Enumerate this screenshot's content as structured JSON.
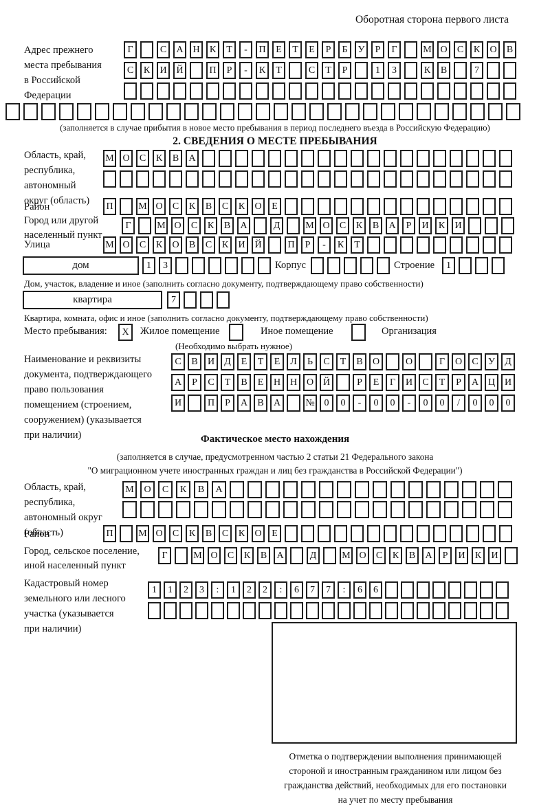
{
  "header": {
    "note": "Оборотная сторона первого листа"
  },
  "prev_address": {
    "label": "Адрес прежнего\nместа пребывания\nв Российской\nФедерации",
    "rows": [
      {
        "t": "Г САНКТ-ПЕТЕРБУРГ МОСКОВ",
        "n": 24
      },
      {
        "t": "СКИЙ ПР-КТ СТР 13 КВ 7",
        "n": 24
      },
      {
        "t": "",
        "n": 24
      },
      {
        "t": "",
        "n": 29
      }
    ],
    "note": "(заполняется в случае прибытия в новое место пребывания в период последнего въезда в Российскую Федерацию)"
  },
  "section2": {
    "title": "2. СВЕДЕНИЯ О МЕСТЕ ПРЕБЫВАНИЯ",
    "region": {
      "label": "Область, край,\nреспублика,\nавтономный\nокруг (область)",
      "rows": [
        {
          "t": "МОСКВА",
          "n": 25
        },
        {
          "t": "",
          "n": 25
        }
      ]
    },
    "district": {
      "label": "Район",
      "row": {
        "t": "П МОСКВСКОЕ",
        "n": 25
      }
    },
    "city": {
      "label": "Город или другой\nнаселенный пункт",
      "row": {
        "t": "Г МОСКВА Д МОСКВАРИКИ",
        "n": 24
      }
    },
    "street": {
      "label": "Улица",
      "row": {
        "t": "МОСКОВСКИЙ ПР-КТ",
        "n": 25
      }
    },
    "house": {
      "field_label": "дом",
      "cells": {
        "t": "13",
        "n": 8
      },
      "korpus_label": "Корпус",
      "korpus_cells": {
        "t": "",
        "n": 5
      },
      "stroenie_label": "Строение",
      "stroenie_cells": {
        "t": "1",
        "n": 4
      },
      "note": "Дом, участок, владение и иное (заполнить согласно документу, подтверждающему право собственности)"
    },
    "apartment": {
      "field_label": "квартира",
      "cells": {
        "t": "7",
        "n": 4
      },
      "note": "Квартира, комната, офис и иное (заполнить согласно документу, подтверждающему право собственности)"
    },
    "stay": {
      "label": "Место пребывания:",
      "options": [
        {
          "label": "Жилое помещение",
          "mark": "X"
        },
        {
          "label": "Иное помещение",
          "mark": ""
        },
        {
          "label": "Организация",
          "mark": ""
        }
      ],
      "note": "(Необходимо выбрать нужное)"
    },
    "doc": {
      "label": "Наименование и реквизиты\nдокумента, подтверждающего\nправо пользования\nпомещением (строением,\nсооружением) (указывается\nпри наличии)",
      "rows": [
        {
          "t": "СВИДЕТЕЛЬСТВО О ГОСУД",
          "n": 21
        },
        {
          "t": "АРСТВЕННОЙ РЕГИСТРАЦИ",
          "n": 21
        },
        {
          "t": "И ПРАВА №00-00-00/000",
          "n": 21
        }
      ]
    }
  },
  "actual": {
    "title": "Фактическое место нахождения",
    "note1": "(заполняется в случае, предусмотренном частью 2 статьи 21 Федерального закона",
    "note2": "\"О миграционном учете иностранных граждан и лиц без гражданства в Российской Федерации\")",
    "region": {
      "label": "Область, край,\nреспублика,\nавтономный округ\n(область)",
      "rows": [
        {
          "t": "МОСКВА",
          "n": 22
        },
        {
          "t": "",
          "n": 22
        }
      ]
    },
    "district": {
      "label": "Район",
      "row": {
        "t": "П МОСКВСКОЕ",
        "n": 25
      }
    },
    "city": {
      "label": "Город, сельское поселение,\nиной населенный пункт",
      "row": {
        "t": "Г МОСКВА Д МОСКВАРИКИ",
        "n": 22
      }
    },
    "cadastre": {
      "label": "Кадастровый номер\nземельного или лесного\nучастка (указывается\nпри наличии)",
      "rows": [
        {
          "t": "1123:122:677:66",
          "n": 23
        },
        {
          "t": "",
          "n": 23
        }
      ]
    }
  },
  "stamp": {
    "caption": "Отметка о подтверждении выполнения принимающей\nстороной и иностранным гражданином или лицом без\nгражданства действий, необходимых для его постановки\nна учет по месту пребывания"
  }
}
